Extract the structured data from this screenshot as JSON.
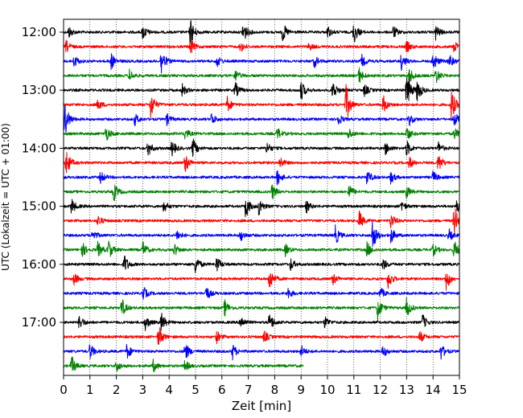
{
  "chart_data": {
    "type": "line",
    "title": "",
    "xlabel": "Zeit  [min]",
    "ylabel": "UTC (Lokalzeit = UTC + 01:00)",
    "xlim": [
      0,
      15
    ],
    "x_ticks": [
      "0",
      "1",
      "2",
      "3",
      "4",
      "5",
      "6",
      "7",
      "8",
      "9",
      "10",
      "11",
      "12",
      "13",
      "14",
      "15"
    ],
    "y_tick_labels": [
      "12:00",
      "13:00",
      "14:00",
      "15:00",
      "16:00",
      "17:00"
    ],
    "y_tick_rows": [
      0,
      4,
      8,
      12,
      16,
      20
    ],
    "grid": "vertical dotted",
    "trace_colors": [
      "#000000",
      "#ff0000",
      "#0000ff",
      "#008000"
    ],
    "row_minutes": 15,
    "series": [
      {
        "start": "12:00",
        "color": "#000000",
        "end_min": 15,
        "events": [
          [
            0.2,
            0.3
          ],
          [
            3.0,
            0.4
          ],
          [
            4.8,
            0.7
          ],
          [
            6.8,
            0.6
          ],
          [
            8.3,
            0.5
          ],
          [
            10.0,
            0.3
          ],
          [
            11.0,
            0.6
          ],
          [
            12.5,
            0.3
          ],
          [
            14.1,
            0.4
          ]
        ]
      },
      {
        "start": "12:15",
        "color": "#ff0000",
        "end_min": 15,
        "events": [
          [
            0.1,
            0.3
          ],
          [
            4.8,
            0.4
          ],
          [
            6.7,
            0.3
          ],
          [
            9.3,
            0.2
          ],
          [
            13.0,
            0.3
          ],
          [
            14.8,
            0.3
          ]
        ]
      },
      {
        "start": "12:30",
        "color": "#0000ff",
        "end_min": 15,
        "events": [
          [
            0.4,
            0.3
          ],
          [
            1.8,
            0.4
          ],
          [
            3.7,
            0.7
          ],
          [
            5.8,
            0.3
          ],
          [
            9.5,
            0.3
          ],
          [
            11.3,
            0.3
          ],
          [
            12.8,
            0.4
          ],
          [
            14.0,
            0.5
          ],
          [
            14.6,
            0.4
          ]
        ]
      },
      {
        "start": "12:45",
        "color": "#008000",
        "end_min": 15,
        "events": [
          [
            2.5,
            0.3
          ],
          [
            6.5,
            0.3
          ],
          [
            11.2,
            0.4
          ],
          [
            13.1,
            0.4
          ],
          [
            14.1,
            0.4
          ]
        ]
      },
      {
        "start": "13:00",
        "color": "#000000",
        "end_min": 15,
        "events": [
          [
            4.5,
            0.3
          ],
          [
            6.5,
            0.4
          ],
          [
            9.0,
            0.5
          ],
          [
            10.2,
            0.5
          ],
          [
            11.4,
            0.3
          ],
          [
            13.0,
            1.0
          ],
          [
            13.4,
            0.6
          ]
        ]
      },
      {
        "start": "13:15",
        "color": "#ff0000",
        "end_min": 15,
        "events": [
          [
            1.3,
            0.3
          ],
          [
            3.3,
            0.7
          ],
          [
            6.2,
            0.4
          ],
          [
            10.7,
            1.0
          ],
          [
            12.1,
            0.5
          ],
          [
            14.7,
            0.8
          ]
        ]
      },
      {
        "start": "13:30",
        "color": "#0000ff",
        "end_min": 15,
        "events": [
          [
            0.05,
            0.9
          ],
          [
            2.7,
            0.3
          ],
          [
            3.9,
            0.3
          ],
          [
            5.6,
            0.3
          ],
          [
            10.4,
            0.3
          ],
          [
            13.1,
            0.3
          ],
          [
            14.8,
            0.4
          ]
        ]
      },
      {
        "start": "13:45",
        "color": "#008000",
        "end_min": 15,
        "events": [
          [
            1.6,
            0.4
          ],
          [
            4.6,
            0.3
          ],
          [
            8.1,
            0.3
          ],
          [
            10.8,
            0.3
          ],
          [
            13.0,
            0.4
          ],
          [
            14.8,
            0.3
          ]
        ]
      },
      {
        "start": "14:00",
        "color": "#000000",
        "end_min": 15,
        "events": [
          [
            3.2,
            0.4
          ],
          [
            4.1,
            0.4
          ],
          [
            4.9,
            0.5
          ],
          [
            7.7,
            0.3
          ],
          [
            12.2,
            0.3
          ],
          [
            13.0,
            0.4
          ],
          [
            14.2,
            0.3
          ]
        ]
      },
      {
        "start": "14:15",
        "color": "#ff0000",
        "end_min": 15,
        "events": [
          [
            0.1,
            0.7
          ],
          [
            4.6,
            0.5
          ],
          [
            8.2,
            0.3
          ],
          [
            13.1,
            0.3
          ],
          [
            14.2,
            0.5
          ]
        ]
      },
      {
        "start": "14:30",
        "color": "#0000ff",
        "end_min": 15,
        "events": [
          [
            1.4,
            0.3
          ],
          [
            8.1,
            0.4
          ],
          [
            11.5,
            0.4
          ],
          [
            12.4,
            0.3
          ],
          [
            14.0,
            0.3
          ]
        ]
      },
      {
        "start": "14:45",
        "color": "#008000",
        "end_min": 15,
        "events": [
          [
            1.9,
            0.5
          ],
          [
            7.9,
            0.4
          ],
          [
            10.8,
            0.4
          ],
          [
            13.0,
            0.3
          ]
        ]
      },
      {
        "start": "15:00",
        "color": "#000000",
        "end_min": 15,
        "events": [
          [
            0.3,
            0.4
          ],
          [
            3.8,
            0.3
          ],
          [
            6.9,
            0.6
          ],
          [
            7.4,
            0.5
          ],
          [
            9.2,
            0.3
          ],
          [
            12.8,
            0.3
          ],
          [
            14.9,
            0.3
          ]
        ]
      },
      {
        "start": "15:15",
        "color": "#ff0000",
        "end_min": 15,
        "events": [
          [
            1.3,
            0.3
          ],
          [
            11.2,
            0.5
          ],
          [
            12.4,
            0.4
          ],
          [
            14.8,
            0.8
          ]
        ]
      },
      {
        "start": "15:30",
        "color": "#0000ff",
        "end_min": 15,
        "events": [
          [
            1.1,
            0.3
          ],
          [
            4.3,
            0.3
          ],
          [
            6.7,
            0.3
          ],
          [
            10.3,
            0.5
          ],
          [
            11.7,
            0.8
          ],
          [
            12.4,
            0.4
          ],
          [
            14.6,
            0.3
          ]
        ]
      },
      {
        "start": "15:45",
        "color": "#008000",
        "end_min": 15,
        "events": [
          [
            0.7,
            0.4
          ],
          [
            1.3,
            0.4
          ],
          [
            1.7,
            0.5
          ],
          [
            3.0,
            0.4
          ],
          [
            4.2,
            0.3
          ],
          [
            8.4,
            0.3
          ],
          [
            11.5,
            0.4
          ],
          [
            14.0,
            0.3
          ],
          [
            14.8,
            0.5
          ]
        ]
      },
      {
        "start": "16:00",
        "color": "#000000",
        "end_min": 15,
        "events": [
          [
            2.3,
            0.5
          ],
          [
            5.0,
            0.5
          ],
          [
            5.8,
            0.4
          ],
          [
            8.6,
            0.3
          ],
          [
            12.1,
            0.3
          ]
        ]
      },
      {
        "start": "16:15",
        "color": "#ff0000",
        "end_min": 15,
        "events": [
          [
            0.4,
            0.3
          ],
          [
            7.8,
            0.6
          ],
          [
            10.2,
            0.3
          ],
          [
            12.3,
            0.5
          ],
          [
            14.5,
            0.6
          ]
        ]
      },
      {
        "start": "16:30",
        "color": "#0000ff",
        "end_min": 15,
        "events": [
          [
            3.0,
            0.4
          ],
          [
            5.4,
            0.4
          ],
          [
            8.5,
            0.3
          ],
          [
            12.0,
            0.3
          ]
        ]
      },
      {
        "start": "16:45",
        "color": "#008000",
        "end_min": 15,
        "events": [
          [
            2.2,
            0.5
          ],
          [
            6.1,
            0.4
          ],
          [
            11.9,
            0.6
          ],
          [
            13.0,
            0.5
          ]
        ]
      },
      {
        "start": "17:00",
        "color": "#000000",
        "end_min": 15,
        "events": [
          [
            0.6,
            0.4
          ],
          [
            3.1,
            0.4
          ],
          [
            3.7,
            0.5
          ],
          [
            6.7,
            0.4
          ],
          [
            7.8,
            0.5
          ],
          [
            9.9,
            0.3
          ],
          [
            13.6,
            0.4
          ]
        ]
      },
      {
        "start": "17:15",
        "color": "#ff0000",
        "end_min": 15,
        "events": [
          [
            3.6,
            0.6
          ],
          [
            5.8,
            0.3
          ],
          [
            7.6,
            0.3
          ],
          [
            13.5,
            0.3
          ]
        ]
      },
      {
        "start": "17:30",
        "color": "#0000ff",
        "end_min": 15,
        "events": [
          [
            1.0,
            0.4
          ],
          [
            2.4,
            0.4
          ],
          [
            4.6,
            0.5
          ],
          [
            6.4,
            0.4
          ],
          [
            9.0,
            0.3
          ],
          [
            12.1,
            0.3
          ],
          [
            14.3,
            0.4
          ]
        ]
      },
      {
        "start": "17:45",
        "color": "#008000",
        "end_min": 9.1,
        "events": [
          [
            0.3,
            0.5
          ],
          [
            2.0,
            0.3
          ],
          [
            3.4,
            0.3
          ],
          [
            4.6,
            0.3
          ]
        ]
      }
    ]
  }
}
